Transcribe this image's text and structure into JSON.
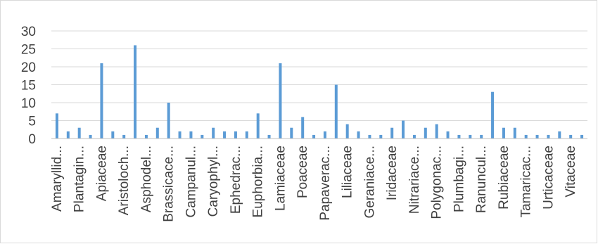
{
  "chart_data": {
    "type": "bar",
    "title": "",
    "xlabel": "",
    "ylabel": "",
    "ylim": [
      0,
      30
    ],
    "yticks": [
      0,
      5,
      10,
      15,
      20,
      25,
      30
    ],
    "grid": true,
    "legend": "none",
    "bar_color": "#5b9bd5",
    "grid_color": "#d9d9d9",
    "axis_color": "#bfbfbf",
    "categories": [
      "Amaryllid...",
      "",
      "Plantagin...",
      "",
      "Apiaceae",
      "",
      "Aristoloch...",
      "",
      "Asphodel...",
      "",
      "Brassicace...",
      "",
      "Campanul...",
      "",
      "Caryophyl...",
      "",
      "Ephedrac...",
      "",
      "Euphorbia...",
      "",
      "Lamiaceae",
      "",
      "Poaceae",
      "",
      "Papaverac...",
      "",
      "Liliaceae",
      "",
      "Geraniace...",
      "",
      "Iridaceae",
      "",
      "Nitrariace...",
      "",
      "Polygonac...",
      "",
      "Plumbagi...",
      "",
      "Ranuncul...",
      "",
      "Rubiaceae",
      "",
      "Tamaricac...",
      "",
      "Urticaceae",
      "",
      "Vitaceae",
      ""
    ],
    "values": [
      7,
      2,
      3,
      1,
      21,
      2,
      1,
      26,
      1,
      3,
      10,
      2,
      2,
      1,
      3,
      2,
      2,
      2,
      7,
      1,
      21,
      3,
      6,
      1,
      2,
      15,
      4,
      2,
      1,
      1,
      3,
      5,
      1,
      3,
      4,
      2,
      1,
      1,
      1,
      13,
      3,
      3,
      1,
      1,
      1,
      2,
      1,
      1
    ]
  }
}
